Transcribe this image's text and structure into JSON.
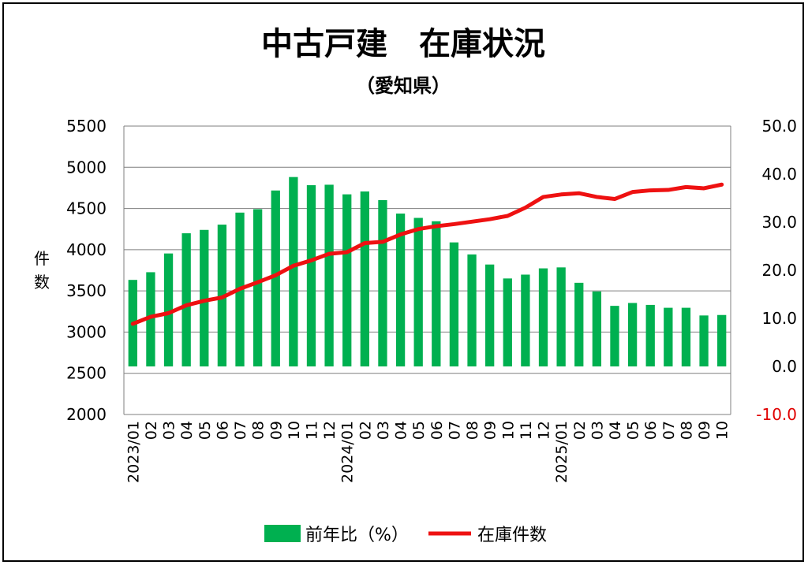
{
  "chart_data": {
    "type": "bar+line",
    "title": "中古戸建　在庫状況",
    "subtitle": "（愛知県）",
    "ylabel_left": "件数",
    "categories": [
      "2023/01",
      "02",
      "03",
      "04",
      "05",
      "06",
      "07",
      "08",
      "09",
      "10",
      "11",
      "12",
      "2024/01",
      "02",
      "03",
      "04",
      "05",
      "06",
      "07",
      "08",
      "09",
      "10",
      "11",
      "12",
      "2025/01",
      "02",
      "03",
      "04",
      "05",
      "06",
      "07",
      "08",
      "09",
      "10"
    ],
    "left_axis": {
      "min": 2000,
      "max": 5500,
      "ticks": [
        "2000",
        "2500",
        "3000",
        "3500",
        "4000",
        "4500",
        "5000",
        "5500"
      ]
    },
    "right_axis": {
      "min": -10,
      "max": 50,
      "ticks": [
        "-10.0",
        "0.0",
        "10.0",
        "20.0",
        "30.0",
        "40.0",
        "50.0"
      ]
    },
    "series": [
      {
        "name": "前年比（%）",
        "type": "bar",
        "axis": "right",
        "color": "#00b050",
        "values": [
          18.0,
          19.6,
          23.5,
          27.7,
          28.4,
          29.5,
          32.0,
          32.7,
          36.6,
          39.4,
          37.7,
          37.8,
          35.8,
          36.4,
          34.6,
          31.8,
          30.9,
          30.2,
          25.8,
          23.3,
          21.2,
          18.3,
          19.1,
          20.4,
          20.6,
          17.4,
          15.6,
          12.6,
          13.2,
          12.8,
          12.2,
          12.2,
          10.6,
          10.7
        ]
      },
      {
        "name": "在庫件数",
        "type": "line",
        "axis": "left",
        "color": "#ee1111",
        "values": [
          3100,
          3185,
          3230,
          3325,
          3380,
          3420,
          3525,
          3605,
          3690,
          3805,
          3870,
          3950,
          3970,
          4080,
          4095,
          4185,
          4250,
          4285,
          4310,
          4340,
          4370,
          4410,
          4510,
          4640,
          4670,
          4685,
          4640,
          4615,
          4700,
          4720,
          4725,
          4760,
          4745,
          4790
        ]
      }
    ],
    "grid": true,
    "legend_position": "bottom"
  }
}
